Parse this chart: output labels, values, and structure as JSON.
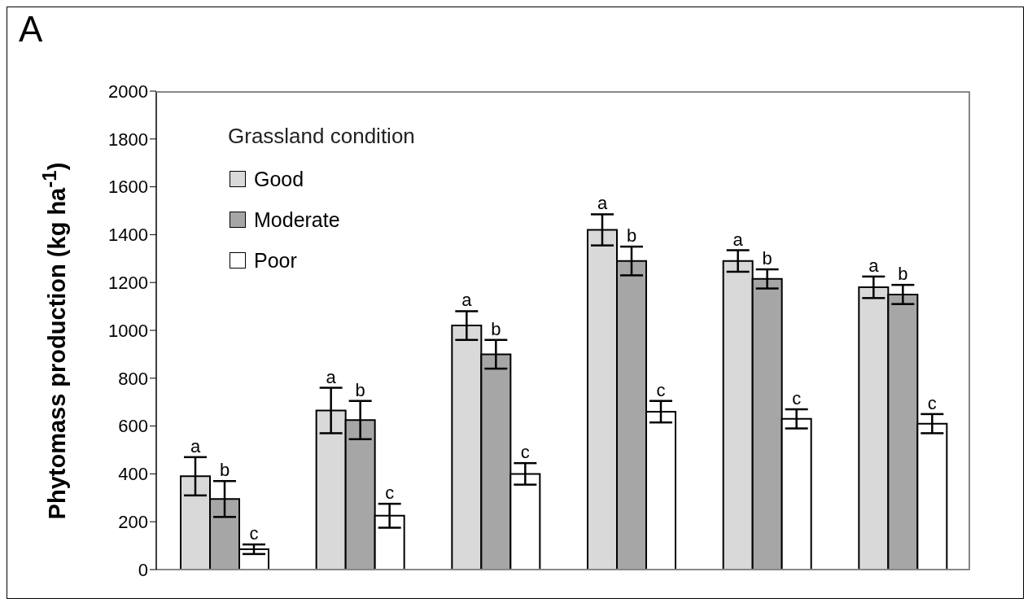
{
  "chart_data": {
    "type": "bar",
    "title": "A",
    "ylabel": "Phytomass production (kg ha$^{-1}$)",
    "legend_title": "Grassland condition",
    "legend": "top left",
    "tick_labels": "y",
    "categories": [
      null,
      null,
      null,
      null,
      null,
      null
    ],
    "series": [
      {
        "name": "Good",
        "color": "#d9d9d9",
        "values": [
          390,
          665,
          1020,
          1420,
          1290,
          1180
        ],
        "errors": [
          80,
          95,
          60,
          65,
          45,
          45
        ],
        "value_labels": [
          "a",
          "a",
          "a",
          "a",
          "a",
          "a"
        ]
      },
      {
        "name": "Moderate",
        "color": "#a6a6a6",
        "values": [
          295,
          625,
          900,
          1290,
          1215,
          1150
        ],
        "errors": [
          75,
          80,
          60,
          60,
          40,
          40
        ],
        "value_labels": [
          "b",
          "b",
          "b",
          "b",
          "b",
          "b"
        ]
      },
      {
        "name": "Poor",
        "color": "#ffffff",
        "values": [
          85,
          225,
          400,
          660,
          630,
          610
        ],
        "errors": [
          20,
          50,
          45,
          45,
          40,
          40
        ],
        "value_labels": [
          "c",
          "c",
          "c",
          "c",
          "c",
          "c"
        ]
      }
    ],
    "ylim": [
      0,
      2000
    ],
    "yticks": [
      0,
      200,
      400,
      600,
      800,
      1000,
      1200,
      1400,
      1600,
      1800,
      2000
    ]
  }
}
